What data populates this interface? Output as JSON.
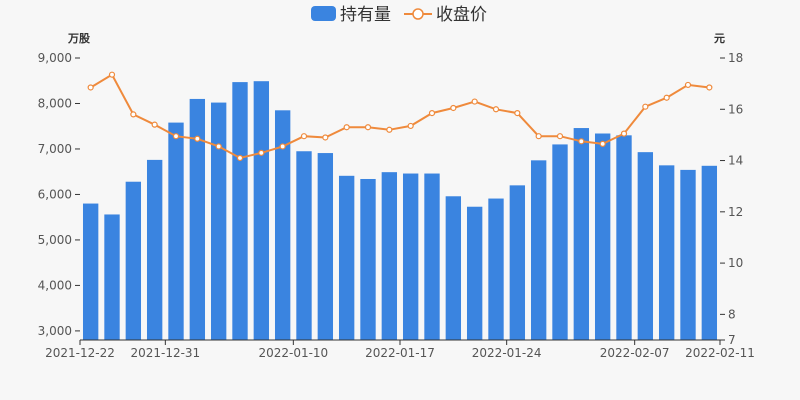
{
  "chart_data": {
    "type": "bar",
    "legend": {
      "position": "top-center"
    },
    "colors": {
      "bar": "#3a84e0",
      "line": "#ef8a3c",
      "axis": "#333333",
      "text": "#555555",
      "background": "#f7f7f7"
    },
    "series": [
      {
        "name": "持有量",
        "type": "bar",
        "axis": "left",
        "values": [
          5800,
          5560,
          6280,
          6760,
          7580,
          8100,
          8020,
          8470,
          8490,
          7850,
          6950,
          6910,
          6410,
          6340,
          6490,
          6460,
          6460,
          5960,
          5730,
          5910,
          6200,
          6750,
          7100,
          7460,
          7340,
          7300,
          6930,
          6640,
          6540,
          6630
        ]
      },
      {
        "name": "收盘价",
        "type": "line",
        "axis": "right",
        "values": [
          16.85,
          17.35,
          15.8,
          15.4,
          14.95,
          14.85,
          14.55,
          14.1,
          14.3,
          14.55,
          14.95,
          14.9,
          15.3,
          15.3,
          15.2,
          15.35,
          15.85,
          16.05,
          16.3,
          16.0,
          15.85,
          14.95,
          14.95,
          14.75,
          14.65,
          15.05,
          16.1,
          16.45,
          16.95,
          16.85
        ]
      }
    ],
    "x_labels": [
      "2021-12-22",
      "2021-12-31",
      "2022-01-10",
      "2022-01-17",
      "2022-01-24",
      "2022-02-07",
      "2022-02-11"
    ],
    "x_label_indices": [
      0,
      4,
      10,
      15,
      20,
      26,
      30
    ],
    "y_left": {
      "unit": "万股",
      "min": 2800,
      "max": 9000,
      "ticks": [
        3000,
        4000,
        5000,
        6000,
        7000,
        8000,
        9000
      ],
      "tick_labels": [
        "3,000",
        "4,000",
        "5,000",
        "6,000",
        "7,000",
        "8,000",
        "9,000"
      ]
    },
    "y_right": {
      "unit": "元",
      "min": 7,
      "max": 18,
      "ticks": [
        7,
        8,
        10,
        12,
        14,
        16,
        18
      ],
      "tick_labels": [
        "7",
        "8",
        "10",
        "12",
        "14",
        "16",
        "18"
      ]
    }
  }
}
